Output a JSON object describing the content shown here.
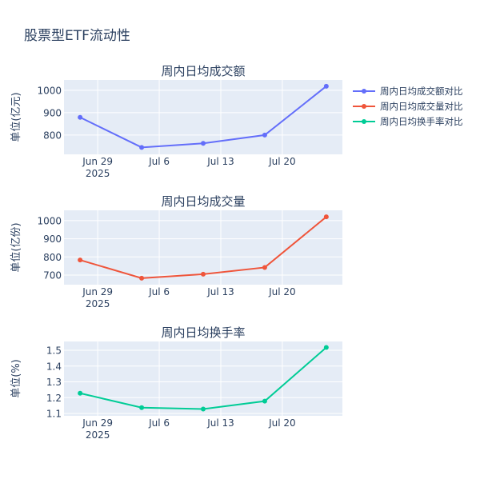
{
  "title": "股票型ETF流动性",
  "legend": {
    "placement": "top-right",
    "entries": [
      "周内日均成交额对比",
      "周内日均成交量对比",
      "周内日均换手率对比"
    ]
  },
  "chart_data": [
    {
      "type": "line",
      "title": "周内日均成交额",
      "ylabel": "单位(亿元)",
      "series": [
        {
          "name": "周内日均成交额对比",
          "color": "#636efa",
          "x": [
            "2025-06-27",
            "2025-07-04",
            "2025-07-11",
            "2025-07-18",
            "2025-07-25"
          ],
          "values": [
            879,
            745,
            763,
            800,
            1018
          ]
        }
      ],
      "xlim": [
        "2025-06-25 04:00",
        "2025-07-26 20:00"
      ],
      "ylim": [
        714,
        1046
      ],
      "xticks": [
        {
          "date": "2025-06-29",
          "label": "Jun 29",
          "sub": "2025"
        },
        {
          "date": "2025-07-06",
          "label": "Jul 6"
        },
        {
          "date": "2025-07-13",
          "label": "Jul 13"
        },
        {
          "date": "2025-07-20",
          "label": "Jul 20"
        }
      ],
      "yticks": [
        800,
        900,
        1000
      ],
      "grid": true
    },
    {
      "type": "line",
      "title": "周内日均成交量",
      "ylabel": "单位(亿份)",
      "series": [
        {
          "name": "周内日均成交量对比",
          "color": "#ef553b",
          "x": [
            "2025-06-27",
            "2025-07-04",
            "2025-07-11",
            "2025-07-18",
            "2025-07-25"
          ],
          "values": [
            783,
            683,
            705,
            742,
            1021
          ]
        }
      ],
      "xlim": [
        "2025-06-25 04:00",
        "2025-07-26 20:00"
      ],
      "ylim": [
        647,
        1057
      ],
      "xticks": [
        {
          "date": "2025-06-29",
          "label": "Jun 29",
          "sub": "2025"
        },
        {
          "date": "2025-07-06",
          "label": "Jul 6"
        },
        {
          "date": "2025-07-13",
          "label": "Jul 13"
        },
        {
          "date": "2025-07-20",
          "label": "Jul 20"
        }
      ],
      "yticks": [
        700,
        800,
        900,
        1000
      ],
      "grid": true
    },
    {
      "type": "line",
      "title": "周内日均换手率",
      "ylabel": "单位(%)",
      "series": [
        {
          "name": "周内日均换手率对比",
          "color": "#00cc96",
          "x": [
            "2025-06-27",
            "2025-07-04",
            "2025-07-11",
            "2025-07-18",
            "2025-07-25"
          ],
          "values": [
            1.228,
            1.137,
            1.128,
            1.178,
            1.518
          ]
        }
      ],
      "xlim": [
        "2025-06-25 04:00",
        "2025-07-26 20:00"
      ],
      "ylim": [
        1.085,
        1.556
      ],
      "xticks": [
        {
          "date": "2025-06-29",
          "label": "Jun 29",
          "sub": "2025"
        },
        {
          "date": "2025-07-06",
          "label": "Jul 6"
        },
        {
          "date": "2025-07-13",
          "label": "Jul 13"
        },
        {
          "date": "2025-07-20",
          "label": "Jul 20"
        }
      ],
      "yticks": [
        1.1,
        1.2,
        1.3,
        1.4,
        1.5
      ],
      "grid": true
    }
  ]
}
